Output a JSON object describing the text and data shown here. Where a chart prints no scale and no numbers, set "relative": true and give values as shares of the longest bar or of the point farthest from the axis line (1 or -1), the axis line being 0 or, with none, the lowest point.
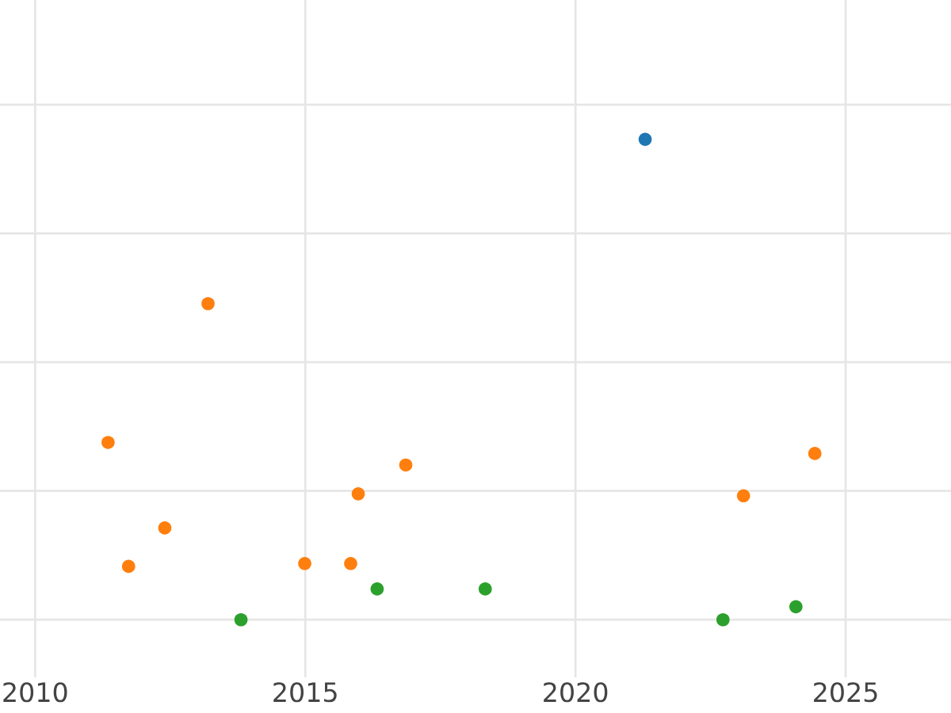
{
  "chart_data": {
    "type": "scatter",
    "relative": true,
    "grid": true,
    "marker": "circle",
    "xlim": [
      2009.35,
      2026.95
    ],
    "xticks": [
      2010,
      2015,
      2020,
      2025
    ],
    "series": [
      {
        "color": "#1f77b4",
        "x": [
          2021.29
        ],
        "values": [
          1.0
        ]
      },
      {
        "color": "#ff7f0e",
        "x": [
          2013.2,
          2011.35,
          2024.43,
          2016.86,
          2015.98,
          2023.11,
          2012.4,
          2011.73,
          2014.99,
          2015.84
        ],
        "values": [
          0.658,
          0.369,
          0.346,
          0.322,
          0.262,
          0.258,
          0.191,
          0.111,
          0.117,
          0.117
        ]
      },
      {
        "color": "#2ca02c",
        "x": [
          2013.81,
          2016.33,
          2018.33,
          2022.73,
          2024.08
        ],
        "values": [
          0,
          0.064,
          0.064,
          0,
          0.027
        ]
      }
    ]
  }
}
